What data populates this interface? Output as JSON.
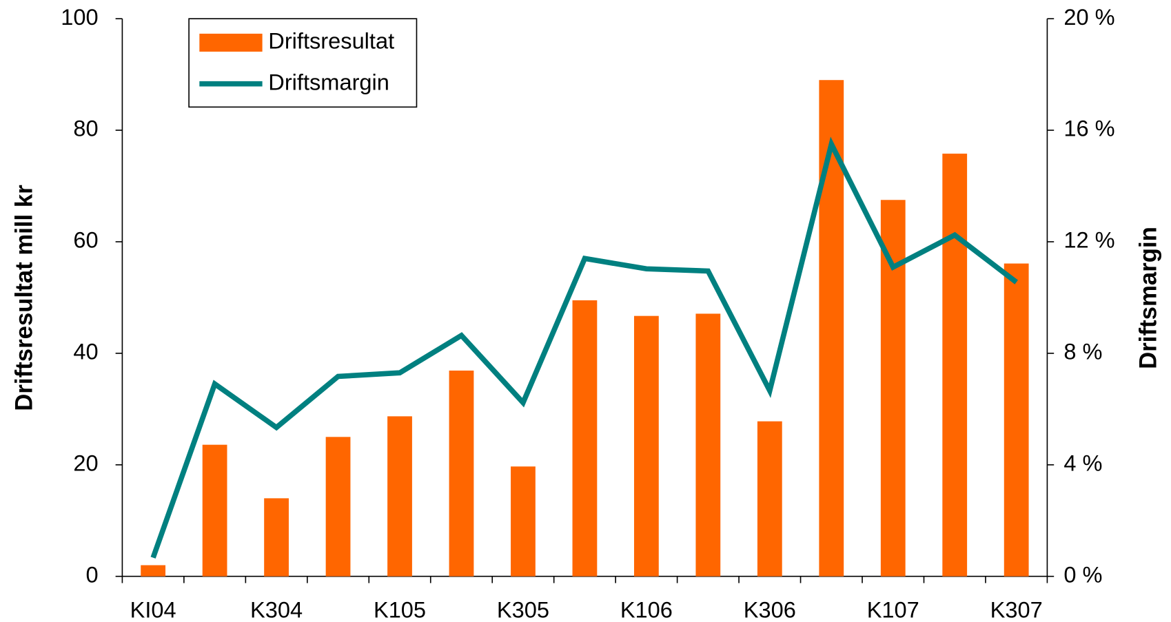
{
  "chart_data": {
    "type": "bar_line",
    "categories": [
      "KI04",
      null,
      "K304",
      null,
      "K105",
      null,
      "K305",
      null,
      "K106",
      null,
      "K306",
      null,
      "K107",
      null,
      "K307"
    ],
    "series": [
      {
        "name": "Driftsresultat",
        "type": "bar",
        "color": "#ff6600",
        "values": [
          2,
          23.6,
          14,
          25,
          28.7,
          36.9,
          19.7,
          49.5,
          46.7,
          47.1,
          27.8,
          89,
          67.5,
          75.8,
          56.1
        ]
      },
      {
        "name": "Driftsmargin",
        "type": "line",
        "axis": "y2",
        "color": "#008080",
        "values": [
          0.67,
          6.9,
          5.34,
          7.17,
          7.3,
          8.64,
          6.23,
          11.4,
          11.03,
          10.95,
          6.66,
          15.5,
          11.09,
          12.24,
          10.55
        ]
      }
    ],
    "ylabel": "Driftsresultat mill kr",
    "y2label": "Driftsmargin",
    "ylim": [
      0,
      100
    ],
    "yticks": [
      0,
      20,
      40,
      60,
      80,
      100
    ],
    "y2lim": [
      0,
      20
    ],
    "y2ticks": [
      {
        "value": 0,
        "label": "0 %"
      },
      {
        "value": 4,
        "label": "4 %"
      },
      {
        "value": 8,
        "label": "8 %"
      },
      {
        "value": 12,
        "label": "12 %"
      },
      {
        "value": 16,
        "label": "16 %"
      },
      {
        "value": 20,
        "label": "20 %"
      }
    ],
    "legend": "upper left"
  }
}
